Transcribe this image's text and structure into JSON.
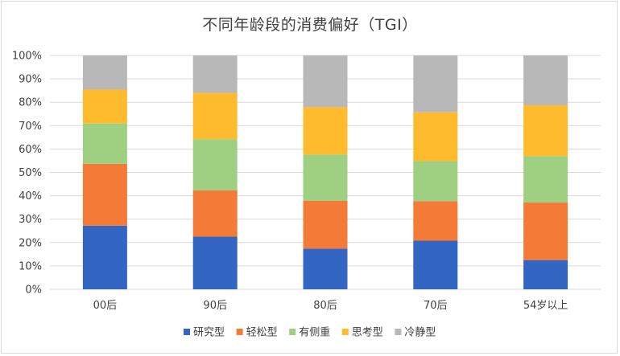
{
  "chart_data": {
    "type": "bar",
    "stacked": true,
    "title": "不同年龄段的消费偏好（TGI）",
    "xlabel": "",
    "ylabel": "",
    "categories": [
      "00后",
      "90后",
      "80后",
      "70后",
      "54岁以上"
    ],
    "ylim": [
      0,
      100
    ],
    "yticks": [
      "0%",
      "10%",
      "20%",
      "30%",
      "40%",
      "50%",
      "60%",
      "70%",
      "80%",
      "90%",
      "100%"
    ],
    "grid": true,
    "legend": "bottom",
    "series": [
      {
        "name": "研究型",
        "color": "#3366c2",
        "values": [
          27.2,
          22.5,
          17.4,
          20.8,
          12.5
        ]
      },
      {
        "name": "轻松型",
        "color": "#f47a37",
        "values": [
          26.5,
          19.8,
          20.4,
          16.9,
          24.6
        ]
      },
      {
        "name": "有侧重",
        "color": "#9fd082",
        "values": [
          17.2,
          21.9,
          19.8,
          17.1,
          19.8
        ]
      },
      {
        "name": "思考型",
        "color": "#fdbb2d",
        "values": [
          14.5,
          19.8,
          20.3,
          20.9,
          21.8
        ]
      },
      {
        "name": "冷静型",
        "color": "#b8b8b8",
        "values": [
          14.6,
          16.0,
          22.1,
          24.3,
          21.3
        ]
      }
    ]
  }
}
